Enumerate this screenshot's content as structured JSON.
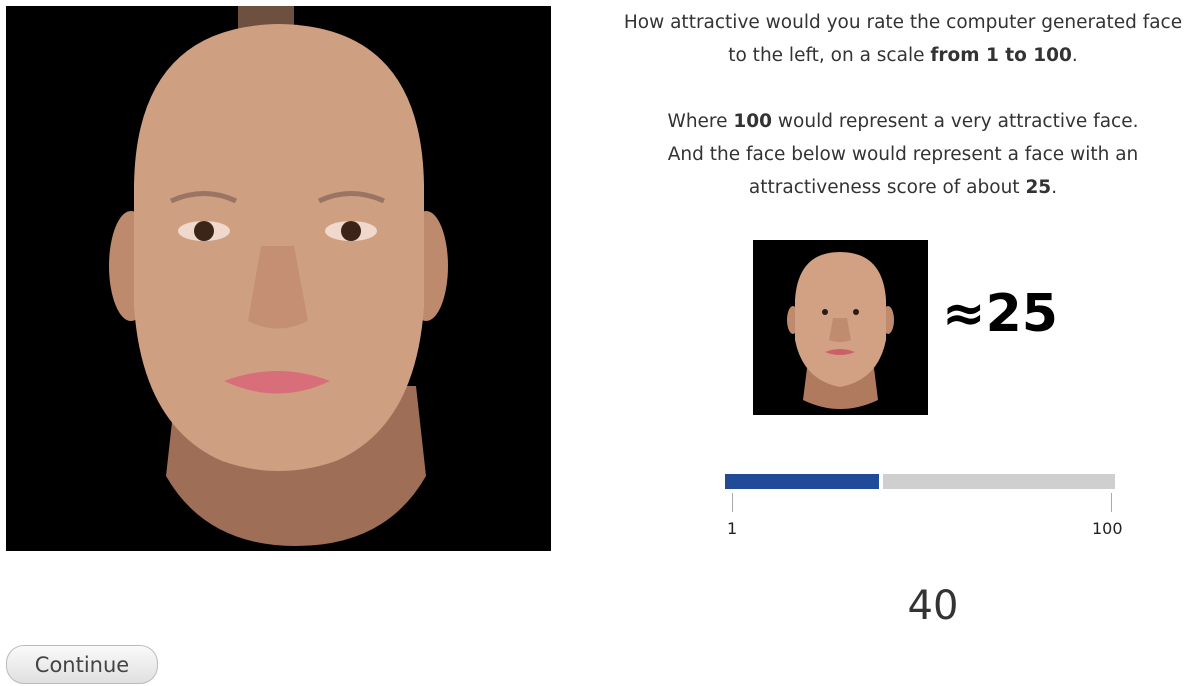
{
  "question": [
    "How attractive would you rate the computer generated face to the left, on a scale ",
    "from 1 to 100",
    "."
  ],
  "explanation": {
    "line1": [
      "Where ",
      "100",
      " would represent a very attractive face."
    ],
    "line2": [
      "And the face below would represent a face with an attractiveness score of about ",
      "25",
      "."
    ]
  },
  "example_label": "≈25",
  "slider": {
    "min": 1,
    "max": 100,
    "value": 40
  },
  "button": "Continue"
}
